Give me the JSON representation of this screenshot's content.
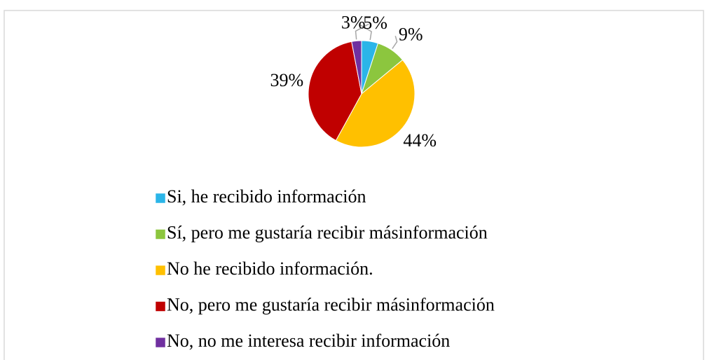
{
  "chart_data": {
    "type": "pie",
    "categories": [
      "Si, he recibido información",
      "Sí, pero me gustaría recibir másinformación",
      "No he recibido información.",
      "No, pero me gustaría recibir másinformación",
      "No, no me interesa recibir información"
    ],
    "values": [
      5,
      9,
      44,
      39,
      3
    ],
    "value_labels": [
      "5%",
      "9%",
      "44%",
      "39%",
      "3%"
    ],
    "colors": [
      "#2bb5e8",
      "#8cc63e",
      "#ffc000",
      "#c00000",
      "#7030a0"
    ],
    "legend": "bottom"
  }
}
